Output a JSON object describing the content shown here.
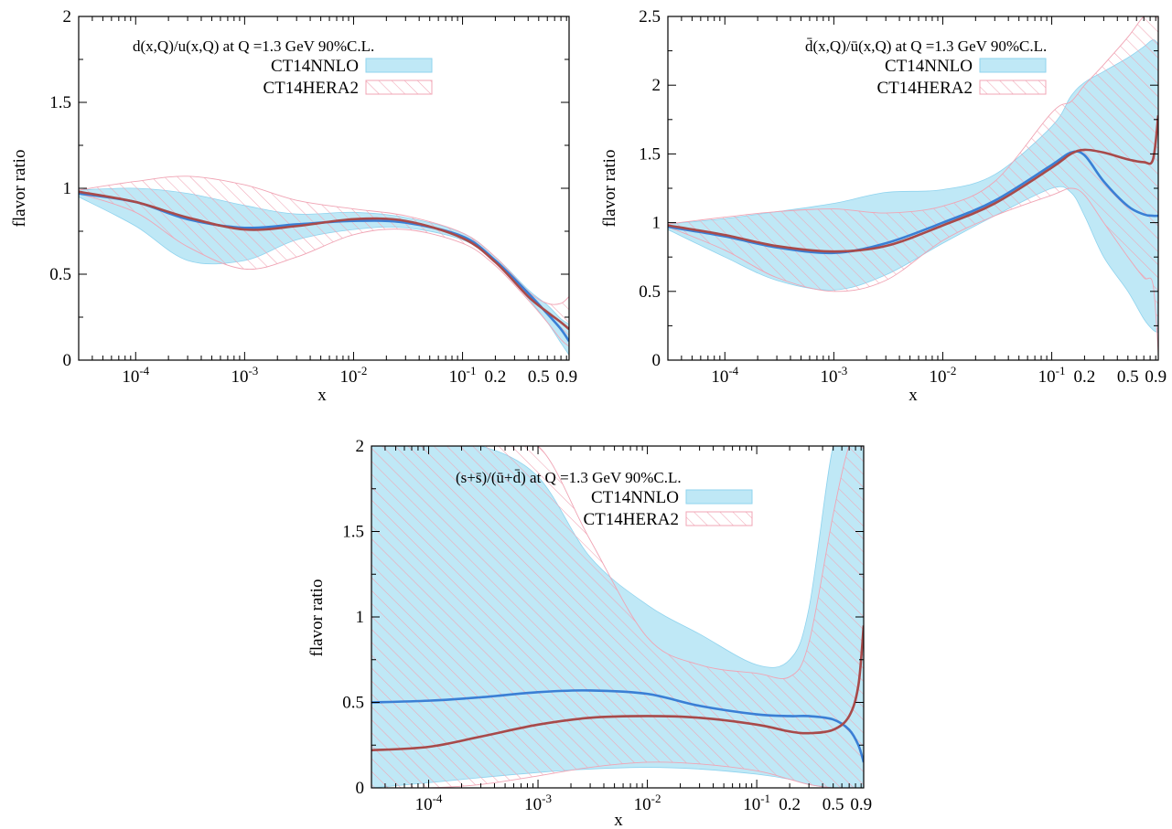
{
  "colors": {
    "nnlo_band": "#bfe8f6",
    "nnlo_band_edge": "#8fd3ee",
    "hera2_hatch": "#f0a4b4",
    "nnlo_line": "#3a7fd5",
    "hera2_line": "#a84a4a"
  },
  "chart_data": [
    {
      "type": "area",
      "title": "d(x,Q)/u(x,Q) at Q =1.3 GeV 90%C.L.",
      "xlabel": "x",
      "ylabel": "flavor ratio",
      "xscale": "log",
      "xlim": [
        3e-05,
        0.95
      ],
      "ylim": [
        0,
        2
      ],
      "yticks": [
        0,
        0.5,
        1,
        1.5,
        2
      ],
      "ytick_labels": [
        "0",
        "0.5",
        "1",
        "1.5",
        "2"
      ],
      "xticks": [
        {
          "value": 0.0001,
          "label": "10",
          "exp": "-4"
        },
        {
          "value": 0.001,
          "label": "10",
          "exp": "-3"
        },
        {
          "value": 0.01,
          "label": "10",
          "exp": "-2"
        },
        {
          "value": 0.1,
          "label": "10",
          "exp": "-1"
        },
        {
          "value": 0.2,
          "label": "0.2",
          "exp": ""
        },
        {
          "value": 0.5,
          "label": "0.5",
          "exp": ""
        },
        {
          "value": 0.9,
          "label": "0.9",
          "exp": ""
        }
      ],
      "legend": [
        "CT14NNLO",
        "CT14HERA2"
      ],
      "x": [
        3e-05,
        0.0001,
        0.0003,
        0.001,
        0.003,
        0.01,
        0.03,
        0.1,
        0.2,
        0.4,
        0.6,
        0.8,
        0.95
      ],
      "series": [
        {
          "name": "CT14NNLO",
          "central": [
            0.97,
            0.92,
            0.82,
            0.77,
            0.79,
            0.81,
            0.8,
            0.72,
            0.58,
            0.39,
            0.27,
            0.18,
            0.11
          ],
          "lower": [
            0.95,
            0.78,
            0.58,
            0.58,
            0.7,
            0.76,
            0.77,
            0.7,
            0.57,
            0.36,
            0.22,
            0.1,
            0.03
          ],
          "upper": [
            0.99,
            1.0,
            0.97,
            0.9,
            0.85,
            0.86,
            0.83,
            0.74,
            0.6,
            0.41,
            0.32,
            0.24,
            0.21
          ]
        },
        {
          "name": "CT14HERA2",
          "central": [
            0.98,
            0.92,
            0.83,
            0.76,
            0.78,
            0.82,
            0.81,
            0.71,
            0.57,
            0.37,
            0.28,
            0.22,
            0.18
          ],
          "lower": [
            0.97,
            0.86,
            0.66,
            0.53,
            0.6,
            0.73,
            0.76,
            0.68,
            0.55,
            0.35,
            0.22,
            0.12,
            0.08
          ],
          "upper": [
            0.99,
            1.04,
            1.07,
            1.02,
            0.93,
            0.88,
            0.84,
            0.74,
            0.6,
            0.4,
            0.33,
            0.33,
            0.37
          ]
        }
      ]
    },
    {
      "type": "area",
      "title": "d̄(x,Q)/ū(x,Q) at Q =1.3 GeV 90%C.L.",
      "xlabel": "x",
      "ylabel": "flavor ratio",
      "xscale": "log",
      "xlim": [
        3e-05,
        0.95
      ],
      "ylim": [
        0,
        2.5
      ],
      "yticks": [
        0,
        0.5,
        1,
        1.5,
        2,
        2.5
      ],
      "ytick_labels": [
        "0",
        "0.5",
        "1",
        "1.5",
        "2",
        "2.5"
      ],
      "xticks": [
        {
          "value": 0.0001,
          "label": "10",
          "exp": "-4"
        },
        {
          "value": 0.001,
          "label": "10",
          "exp": "-3"
        },
        {
          "value": 0.01,
          "label": "10",
          "exp": "-2"
        },
        {
          "value": 0.1,
          "label": "10",
          "exp": "-1"
        },
        {
          "value": 0.2,
          "label": "0.2",
          "exp": ""
        },
        {
          "value": 0.5,
          "label": "0.5",
          "exp": ""
        },
        {
          "value": 0.9,
          "label": "0.9",
          "exp": ""
        }
      ],
      "legend": [
        "CT14NNLO",
        "CT14HERA2"
      ],
      "x": [
        3e-05,
        0.0001,
        0.0003,
        0.001,
        0.003,
        0.01,
        0.03,
        0.1,
        0.15,
        0.2,
        0.3,
        0.5,
        0.7,
        0.85,
        0.95
      ],
      "series": [
        {
          "name": "CT14NNLO",
          "central": [
            0.97,
            0.9,
            0.82,
            0.78,
            0.85,
            1.0,
            1.16,
            1.42,
            1.51,
            1.49,
            1.3,
            1.12,
            1.06,
            1.05,
            1.05
          ],
          "lower": [
            0.95,
            0.75,
            0.58,
            0.51,
            0.62,
            0.85,
            1.05,
            1.25,
            1.22,
            1.05,
            0.75,
            0.5,
            0.3,
            0.22,
            0.2
          ],
          "upper": [
            0.99,
            1.03,
            1.08,
            1.14,
            1.22,
            1.24,
            1.35,
            1.7,
            1.92,
            2.02,
            2.1,
            2.2,
            2.28,
            2.33,
            2.3
          ]
        },
        {
          "name": "CT14HERA2",
          "central": [
            0.98,
            0.91,
            0.83,
            0.79,
            0.83,
            0.98,
            1.14,
            1.4,
            1.5,
            1.53,
            1.51,
            1.46,
            1.44,
            1.46,
            1.78
          ],
          "lower": [
            0.97,
            0.8,
            0.6,
            0.5,
            0.58,
            0.87,
            1.05,
            1.2,
            1.25,
            1.2,
            1.0,
            0.75,
            0.6,
            0.55,
            0.05
          ],
          "upper": [
            0.99,
            1.04,
            1.08,
            1.1,
            1.07,
            1.12,
            1.3,
            1.8,
            1.88,
            2.0,
            2.15,
            2.35,
            2.5,
            2.5,
            2.5
          ]
        }
      ]
    },
    {
      "type": "area",
      "title": "(s+s̄)/(ū+d̄) at Q =1.3 GeV 90%C.L.",
      "xlabel": "x",
      "ylabel": "flavor ratio",
      "xscale": "log",
      "xlim": [
        3e-05,
        0.95
      ],
      "ylim": [
        0,
        2
      ],
      "yticks": [
        0,
        0.5,
        1,
        1.5,
        2
      ],
      "ytick_labels": [
        "0",
        "0.5",
        "1",
        "1.5",
        "2"
      ],
      "xticks": [
        {
          "value": 0.0001,
          "label": "10",
          "exp": "-4"
        },
        {
          "value": 0.001,
          "label": "10",
          "exp": "-3"
        },
        {
          "value": 0.01,
          "label": "10",
          "exp": "-2"
        },
        {
          "value": 0.1,
          "label": "10",
          "exp": "-1"
        },
        {
          "value": 0.2,
          "label": "0.2",
          "exp": ""
        },
        {
          "value": 0.5,
          "label": "0.5",
          "exp": ""
        },
        {
          "value": 0.9,
          "label": "0.9",
          "exp": ""
        }
      ],
      "legend": [
        "CT14NNLO",
        "CT14HERA2"
      ],
      "x": [
        3e-05,
        0.0001,
        0.0003,
        0.001,
        0.003,
        0.01,
        0.03,
        0.1,
        0.2,
        0.3,
        0.5,
        0.7,
        0.85,
        0.95
      ],
      "series": [
        {
          "name": "CT14NNLO",
          "central": [
            0.5,
            0.51,
            0.53,
            0.56,
            0.57,
            0.55,
            0.48,
            0.43,
            0.42,
            0.42,
            0.4,
            0.34,
            0.25,
            0.15
          ],
          "lower": [
            0.0,
            0.03,
            0.06,
            0.09,
            0.11,
            0.12,
            0.11,
            0.08,
            0.05,
            0.02,
            0.0,
            0.0,
            0.0,
            0.0
          ],
          "upper": [
            2.0,
            2.0,
            2.0,
            1.82,
            1.35,
            1.07,
            0.9,
            0.72,
            0.75,
            1.05,
            2.0,
            2.0,
            2.0,
            2.0
          ]
        },
        {
          "name": "CT14HERA2",
          "central": [
            0.22,
            0.24,
            0.3,
            0.37,
            0.41,
            0.42,
            0.41,
            0.37,
            0.33,
            0.32,
            0.34,
            0.42,
            0.6,
            0.95
          ],
          "lower": [
            0.0,
            0.0,
            0.02,
            0.07,
            0.12,
            0.15,
            0.14,
            0.1,
            0.05,
            0.02,
            0.0,
            0.0,
            0.0,
            0.0
          ],
          "upper": [
            2.0,
            2.0,
            2.0,
            2.0,
            1.45,
            0.88,
            0.72,
            0.67,
            0.65,
            0.85,
            1.6,
            2.0,
            2.0,
            2.0
          ]
        }
      ]
    }
  ]
}
